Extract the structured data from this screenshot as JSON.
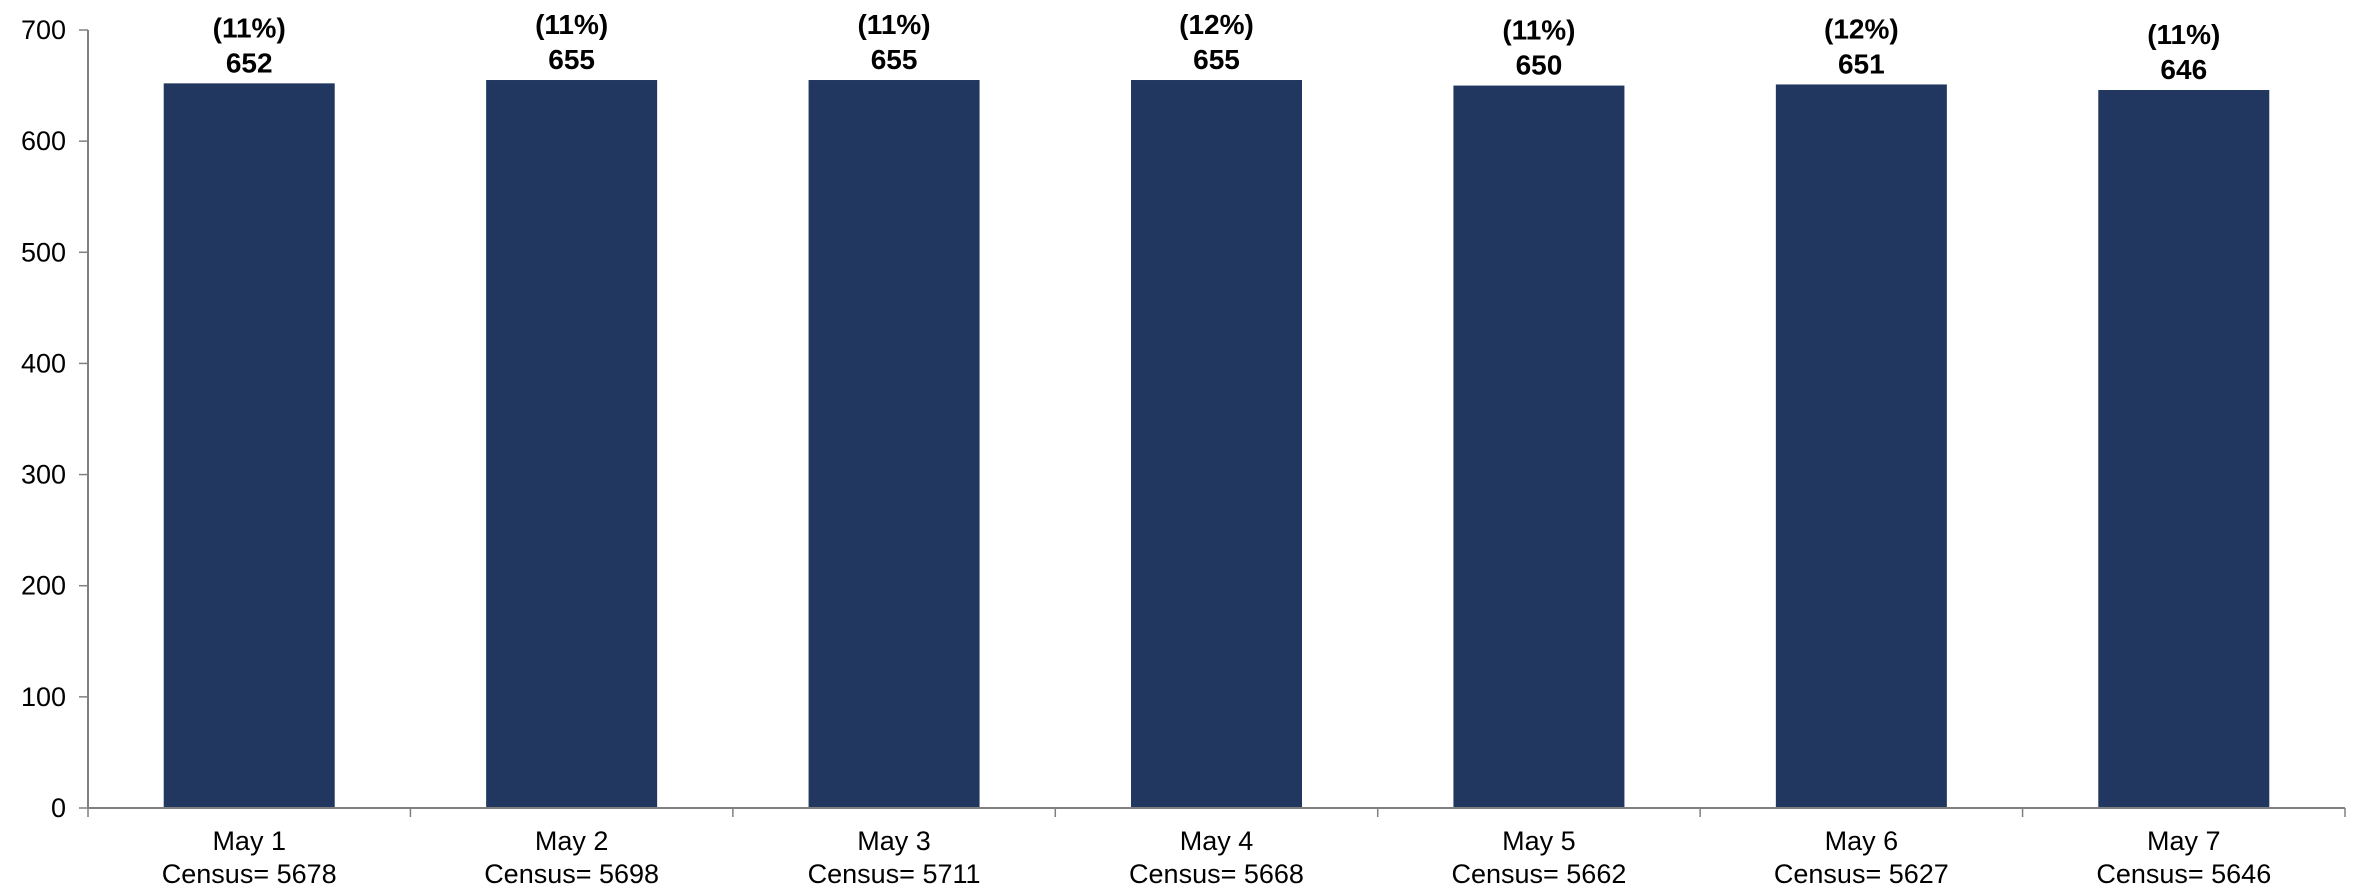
{
  "chart_data": {
    "type": "bar",
    "title": "",
    "xlabel": "",
    "ylabel": "",
    "ylim": [
      0,
      700
    ],
    "yticks": [
      0,
      100,
      200,
      300,
      400,
      500,
      600,
      700
    ],
    "grid": false,
    "legend": "none",
    "bar_color": "#21375f",
    "axis_color": "#808080",
    "categories": [
      {
        "date": "May 1",
        "census": "Census= 5678"
      },
      {
        "date": "May 2",
        "census": "Census= 5698"
      },
      {
        "date": "May 3",
        "census": "Census= 5711"
      },
      {
        "date": "May 4",
        "census": "Census= 5668"
      },
      {
        "date": "May 5",
        "census": "Census= 5662"
      },
      {
        "date": "May 6",
        "census": "Census= 5627"
      },
      {
        "date": "May 7",
        "census": "Census= 5646"
      }
    ],
    "values": [
      652,
      655,
      655,
      655,
      650,
      651,
      646
    ],
    "percent_labels": [
      "(11%)",
      "(11%)",
      "(11%)",
      "(12%)",
      "(11%)",
      "(12%)",
      "(11%)"
    ]
  }
}
